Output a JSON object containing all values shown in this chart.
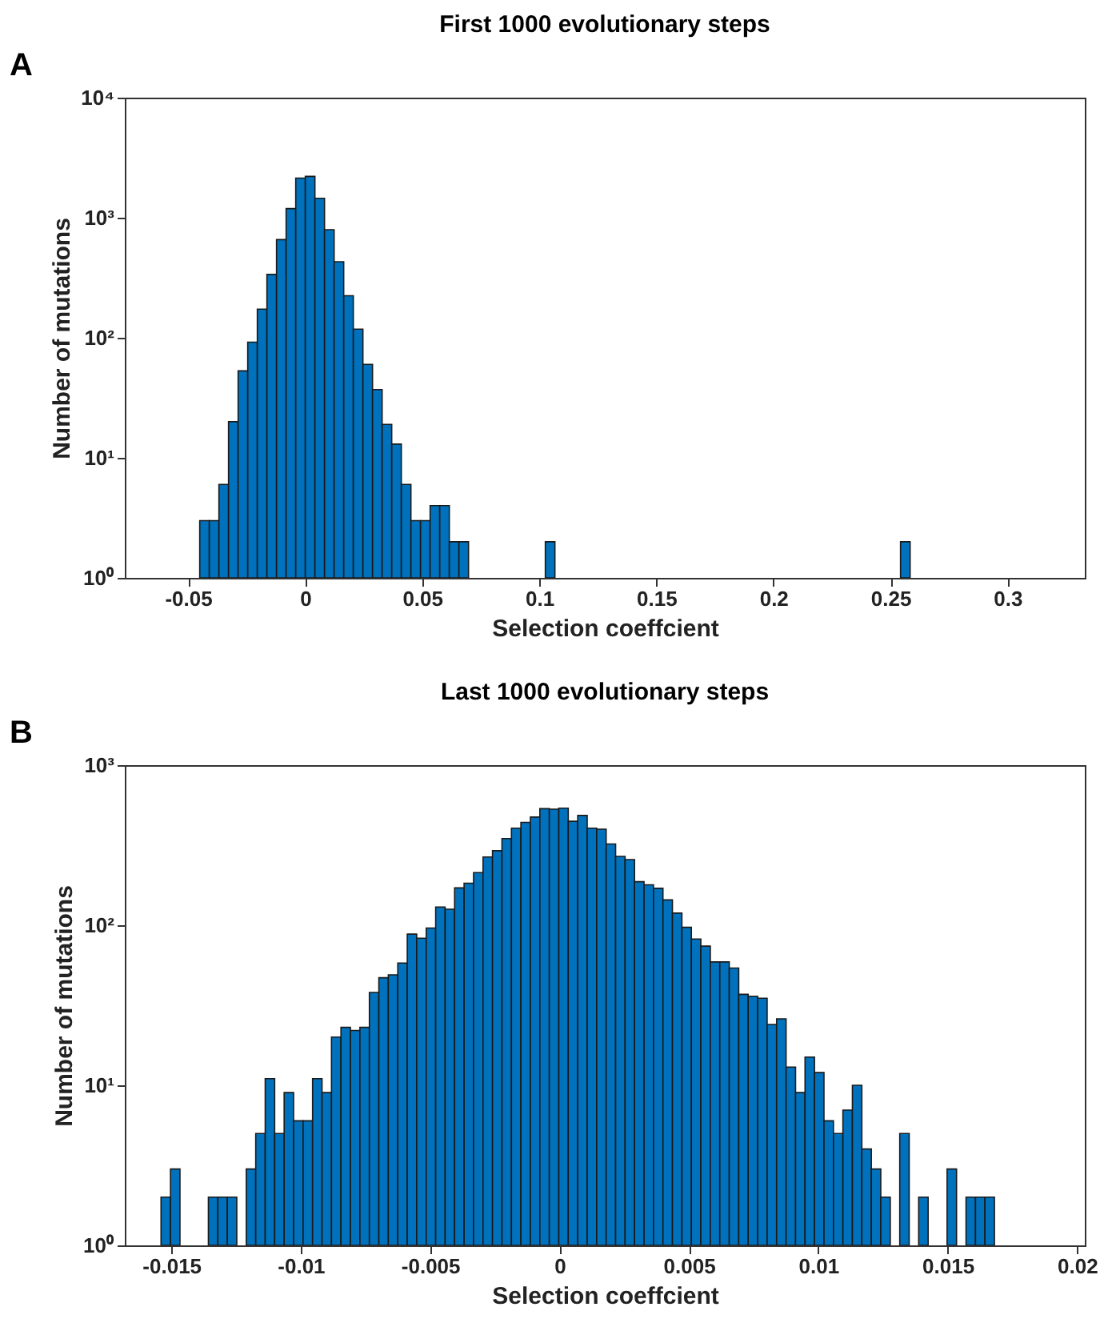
{
  "chart_data": [
    {
      "type": "histogram",
      "title": "First 1000 evolutionary steps",
      "xlabel": "Selection coeffcient",
      "ylabel": "Number of mutations",
      "annotations": [
        "A"
      ],
      "color": "#0072bd",
      "log": "y",
      "grid": false,
      "bins": [
        -0.045,
        -0.0409,
        -0.0368,
        -0.0327,
        -0.0286,
        -0.0245,
        -0.0204,
        -0.0163,
        -0.0122,
        -0.0081,
        -0.004,
        0.0001,
        0.0042,
        0.0083,
        0.0124,
        0.0165,
        0.0206,
        0.0247,
        0.0288,
        0.0329,
        0.037,
        0.0411,
        0.0452,
        0.0493,
        0.0534,
        0.0575,
        0.0616,
        0.0657,
        0.0698,
        0.0739,
        0.078,
        0.0821,
        0.0862,
        0.0903,
        0.0944,
        0.0985,
        0.1026,
        0.1067,
        0.1108,
        0.1149,
        0.119,
        0.1231,
        0.1272,
        0.1313,
        0.1354,
        0.1395,
        0.1436,
        0.1477,
        0.1518,
        0.1559,
        0.16,
        0.1641,
        0.1682,
        0.1723,
        0.1764,
        0.1805,
        0.1846,
        0.1887,
        0.1928,
        0.1969,
        0.201,
        0.2051,
        0.2092,
        0.2133,
        0.2174,
        0.2215,
        0.2256,
        0.2297,
        0.2338,
        0.2379,
        0.242,
        0.2461,
        0.2502,
        0.2543,
        0.2584
      ],
      "values": [
        3,
        3,
        6,
        20,
        53,
        92,
        173,
        337,
        657,
        1190,
        2140,
        2210,
        1450,
        795,
        430,
        224,
        118,
        60,
        37,
        19,
        13,
        6,
        3,
        3,
        4,
        4,
        2,
        2,
        null,
        null,
        null,
        null,
        null,
        null,
        null,
        null,
        2,
        null,
        null,
        null,
        null,
        null,
        null,
        null,
        null,
        null,
        null,
        null,
        null,
        null,
        null,
        null,
        null,
        null,
        null,
        null,
        null,
        null,
        null,
        null,
        null,
        null,
        null,
        null,
        null,
        null,
        null,
        null,
        null,
        null,
        null,
        null,
        null,
        2
      ],
      "xlim": [
        -0.077,
        0.333
      ],
      "xticks": [
        -0.05,
        0,
        0.05,
        0.1,
        0.15,
        0.2,
        0.25,
        0.3
      ],
      "ylim": [
        1,
        10000
      ],
      "yticks": [
        {
          "value": 1,
          "label": "10⁰"
        },
        {
          "value": 10,
          "label": "10¹"
        },
        {
          "value": 100,
          "label": "10²"
        },
        {
          "value": 1000,
          "label": "10³"
        },
        {
          "value": 10000,
          "label": "10⁴"
        }
      ]
    },
    {
      "type": "histogram",
      "title": "Last 1000 evolutionary steps",
      "xlabel": "Selection coeffcient",
      "ylabel": "Number of mutations",
      "annotations": [
        "B"
      ],
      "color": "#0072bd",
      "log": "y",
      "grid": false,
      "bins": [
        -0.0154,
        -0.015034,
        -0.014668,
        -0.014302,
        -0.013936,
        -0.01357,
        -0.013204,
        -0.012838,
        -0.012472,
        -0.012106,
        -0.01174,
        -0.011374,
        -0.011008,
        -0.010642,
        -0.010276,
        -0.00991,
        -0.009544,
        -0.009178,
        -0.008812,
        -0.008446,
        -0.00808,
        -0.007714,
        -0.007348,
        -0.006982,
        -0.006616,
        -0.00625,
        -0.005884,
        -0.005518,
        -0.005152,
        -0.004786,
        -0.00442,
        -0.004054,
        -0.003688,
        -0.003322,
        -0.002956,
        -0.00259,
        -0.002224,
        -0.001858,
        -0.001492,
        -0.001126,
        -0.00076,
        -0.000394,
        -2.8e-05,
        0.000338,
        0.000704,
        0.00107,
        0.001436,
        0.001802,
        0.002168,
        0.002534,
        0.0029,
        0.003266,
        0.003632,
        0.003998,
        0.004364,
        0.00473,
        0.005096,
        0.005462,
        0.005828,
        0.006194,
        0.00656,
        0.006926,
        0.007292,
        0.007658,
        0.008024,
        0.00839,
        0.008756,
        0.009122,
        0.009488,
        0.009854,
        0.01022,
        0.010586,
        0.010952,
        0.011318,
        0.011684,
        0.01205,
        0.012416,
        0.012782,
        0.013148,
        0.013514,
        0.01388,
        0.014246,
        0.014612,
        0.014978,
        0.015344,
        0.01571,
        0.016076,
        0.016442,
        0.016808
      ],
      "values": [
        2,
        3,
        null,
        null,
        null,
        2,
        2,
        2,
        null,
        3,
        5,
        11,
        5,
        9,
        6,
        6,
        11,
        9,
        20,
        23,
        22,
        23,
        38,
        47,
        49,
        58,
        88,
        83,
        96,
        130,
        126,
        171,
        183,
        213,
        267,
        292,
        348,
        404,
        439,
        474,
        535,
        531,
        539,
        446,
        485,
        404,
        398,
        322,
        269,
        257,
        187,
        179,
        170,
        144,
        119,
        97,
        82,
        74,
        59,
        59,
        54,
        37,
        36,
        35,
        24,
        26,
        13,
        9,
        15,
        12,
        6,
        5,
        7,
        10,
        4,
        3,
        2,
        null,
        5,
        null,
        2,
        null,
        null,
        3,
        null,
        2,
        2,
        2
      ],
      "xlim": [
        -0.0168,
        0.0203
      ],
      "xticks": [
        -0.015,
        -0.01,
        -0.005,
        0,
        0.005,
        0.01,
        0.015,
        0.02
      ],
      "ylim": [
        1,
        1000
      ],
      "yticks": [
        {
          "value": 1,
          "label": "10⁰"
        },
        {
          "value": 10,
          "label": "10¹"
        },
        {
          "value": 100,
          "label": "10²"
        },
        {
          "value": 1000,
          "label": "10³"
        }
      ]
    }
  ]
}
